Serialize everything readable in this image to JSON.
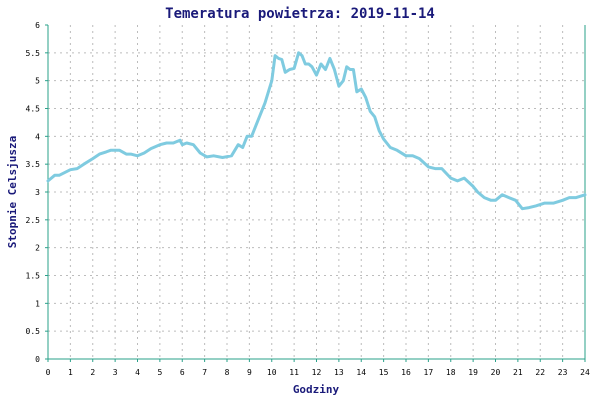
{
  "chart_data": {
    "type": "line",
    "title": "Temeratura powietrza: 2019-11-14",
    "xlabel": "Godziny",
    "ylabel": "Stopnie Celsjusza",
    "xlim": [
      0,
      24
    ],
    "ylim": [
      0,
      6
    ],
    "x_ticks": [
      "0",
      "1",
      "2",
      "3",
      "4",
      "5",
      "6",
      "7",
      "8",
      "9",
      "10",
      "11",
      "12",
      "13",
      "14",
      "15",
      "16",
      "17",
      "18",
      "19",
      "20",
      "21",
      "22",
      "23",
      "24"
    ],
    "y_ticks": [
      "0",
      "0.5",
      "1",
      "1.5",
      "2",
      "2.5",
      "3",
      "3.5",
      "4",
      "4.5",
      "5",
      "5.5",
      "6"
    ],
    "grid": true,
    "colors": {
      "line": "#7fcbe0",
      "axis": "#2aa08a",
      "grid": "#bcbcbc",
      "title": "#1a1a7a"
    },
    "series": [
      {
        "x": [
          0,
          0.3,
          0.5,
          1,
          1.3,
          1.6,
          2,
          2.3,
          2.6,
          2.8,
          3,
          3.2,
          3.5,
          3.7,
          4,
          4.3,
          4.6,
          5,
          5.3,
          5.6,
          5.9,
          6,
          6.2,
          6.5,
          6.8,
          7.1,
          7.4,
          7.8,
          8.2,
          8.5,
          8.7,
          8.9,
          9.1,
          9.4,
          9.7,
          10,
          10.15,
          10.3,
          10.45,
          10.6,
          10.8,
          11,
          11.2,
          11.35,
          11.5,
          11.65,
          11.8,
          12,
          12.2,
          12.4,
          12.6,
          12.8,
          13,
          13.2,
          13.35,
          13.5,
          13.65,
          13.8,
          14,
          14.2,
          14.4,
          14.6,
          14.8,
          15,
          15.3,
          15.6,
          16,
          16.3,
          16.6,
          17,
          17.3,
          17.6,
          18,
          18.3,
          18.6,
          19,
          19.2,
          19.5,
          19.8,
          20,
          20.3,
          20.6,
          20.9,
          21.2,
          21.5,
          21.8,
          22.2,
          22.6,
          23,
          23.3,
          23.6,
          24
        ],
        "values": [
          3.2,
          3.3,
          3.3,
          3.4,
          3.42,
          3.5,
          3.6,
          3.68,
          3.72,
          3.75,
          3.75,
          3.75,
          3.68,
          3.68,
          3.65,
          3.7,
          3.78,
          3.85,
          3.88,
          3.88,
          3.93,
          3.85,
          3.88,
          3.85,
          3.7,
          3.63,
          3.65,
          3.62,
          3.65,
          3.85,
          3.8,
          4.0,
          4.0,
          4.3,
          4.6,
          5.0,
          5.45,
          5.4,
          5.38,
          5.15,
          5.2,
          5.22,
          5.5,
          5.45,
          5.3,
          5.3,
          5.25,
          5.1,
          5.3,
          5.2,
          5.4,
          5.2,
          4.9,
          5.0,
          5.25,
          5.2,
          5.2,
          4.8,
          4.85,
          4.7,
          4.45,
          4.35,
          4.1,
          3.95,
          3.8,
          3.75,
          3.65,
          3.65,
          3.6,
          3.45,
          3.42,
          3.42,
          3.25,
          3.2,
          3.25,
          3.1,
          3.0,
          2.9,
          2.85,
          2.85,
          2.95,
          2.9,
          2.85,
          2.7,
          2.72,
          2.75,
          2.8,
          2.8,
          2.85,
          2.9,
          2.9,
          2.95
        ]
      }
    ]
  }
}
